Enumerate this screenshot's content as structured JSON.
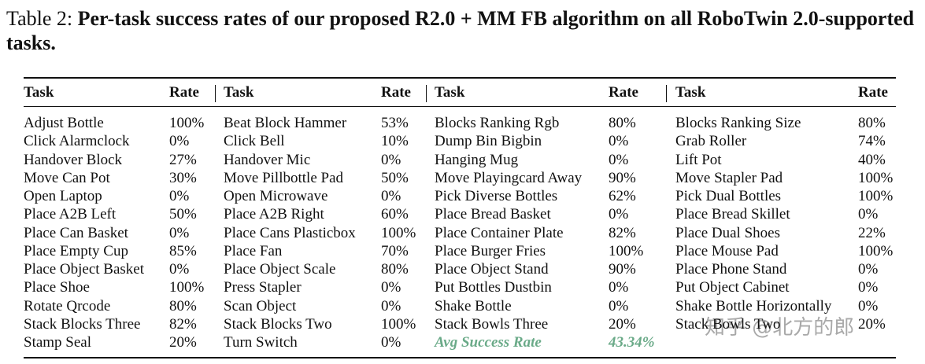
{
  "caption": {
    "label": "Table 2:",
    "text": "Per-task success rates of our proposed R2.0 + MM FB algorithm on all RoboTwin 2.0-supported tasks."
  },
  "table": {
    "header": [
      "Task",
      "Rate",
      "Task",
      "Rate",
      "Task",
      "Rate",
      "Task",
      "Rate"
    ],
    "groups": [
      {
        "rows": [
          [
            "Adjust Bottle",
            "100%"
          ],
          [
            "Click Alarmclock",
            "0%"
          ],
          [
            "Handover Block",
            "27%"
          ],
          [
            "Move Can Pot",
            "30%"
          ],
          [
            "Open Laptop",
            "0%"
          ],
          [
            "Place A2B Left",
            "50%"
          ],
          [
            "Place Can Basket",
            "0%"
          ],
          [
            "Place Empty Cup",
            "85%"
          ],
          [
            "Place Object Basket",
            "0%"
          ],
          [
            "Place Shoe",
            "100%"
          ],
          [
            "Rotate Qrcode",
            "80%"
          ],
          [
            "Stack Blocks Three",
            "82%"
          ],
          [
            "Stamp Seal",
            "20%"
          ]
        ]
      },
      {
        "rows": [
          [
            "Beat Block Hammer",
            "53%"
          ],
          [
            "Click Bell",
            "10%"
          ],
          [
            "Handover Mic",
            "0%"
          ],
          [
            "Move Pillbottle Pad",
            "50%"
          ],
          [
            "Open Microwave",
            "0%"
          ],
          [
            "Place A2B Right",
            "60%"
          ],
          [
            "Place Cans Plasticbox",
            "100%"
          ],
          [
            "Place Fan",
            "70%"
          ],
          [
            "Place Object Scale",
            "80%"
          ],
          [
            "Press Stapler",
            "0%"
          ],
          [
            "Scan Object",
            "0%"
          ],
          [
            "Stack Blocks Two",
            "100%"
          ],
          [
            "Turn Switch",
            "0%"
          ]
        ]
      },
      {
        "rows": [
          [
            "Blocks Ranking Rgb",
            "80%"
          ],
          [
            "Dump Bin Bigbin",
            "0%"
          ],
          [
            "Hanging Mug",
            "0%"
          ],
          [
            "Move Playingcard Away",
            "90%"
          ],
          [
            "Pick Diverse Bottles",
            "62%"
          ],
          [
            "Place Bread Basket",
            "0%"
          ],
          [
            "Place Container Plate",
            "82%"
          ],
          [
            "Place Burger Fries",
            "100%"
          ],
          [
            "Place Object Stand",
            "90%"
          ],
          [
            "Put Bottles Dustbin",
            "0%"
          ],
          [
            "Shake Bottle",
            "0%"
          ],
          [
            "Stack Bowls Three",
            "20%"
          ]
        ]
      },
      {
        "rows": [
          [
            "Blocks Ranking Size",
            "80%"
          ],
          [
            "Grab Roller",
            "74%"
          ],
          [
            "Lift Pot",
            "40%"
          ],
          [
            "Move Stapler Pad",
            "100%"
          ],
          [
            "Pick Dual Bottles",
            "100%"
          ],
          [
            "Place Bread Skillet",
            "0%"
          ],
          [
            "Place Dual Shoes",
            "22%"
          ],
          [
            "Place Mouse Pad",
            "100%"
          ],
          [
            "Place Phone Stand",
            "0%"
          ],
          [
            "Put Object Cabinet",
            "0%"
          ],
          [
            "Shake Bottle Horizontally",
            "0%"
          ],
          [
            "Stack Bowls Two",
            "20%"
          ]
        ]
      }
    ],
    "summary": {
      "label": "Avg Success Rate",
      "value": "43.34%"
    }
  },
  "watermark": "知乎 @北方的郎"
}
